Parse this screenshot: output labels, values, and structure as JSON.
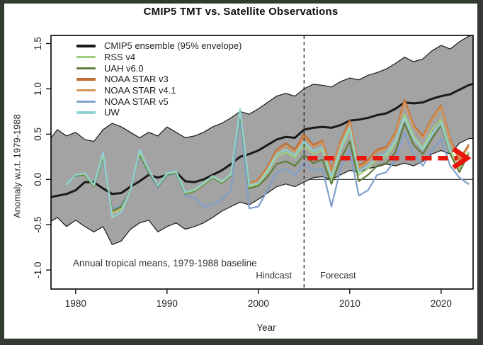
{
  "title": "CMIP5 TMT vs. Satellite Observations",
  "legend": {
    "items": [
      {
        "label": "CMIP5 ensemble (95% envelope)",
        "color": "#1a1a1a"
      },
      {
        "label": "RSS v4",
        "color": "#a3cd7e"
      },
      {
        "label": "UAH v6.0",
        "color": "#5f7d3a"
      },
      {
        "label": "NOAA STAR v3",
        "color": "#bf6d33"
      },
      {
        "label": "NOAA STAR v4.1",
        "color": "#d79455"
      },
      {
        "label": "NOAA STAR v5",
        "color": "#809fcd"
      },
      {
        "label": "UW",
        "color": "#8fd2d4"
      }
    ]
  },
  "annotations": {
    "baseline_note": "Annual tropical means, 1979-1988 baseline",
    "hindcast_label": "Hindcast",
    "forecast_label": "Forecast"
  },
  "chart_data": {
    "type": "line",
    "title": "CMIP5 TMT vs. Satellite Observations",
    "xlabel": "Year",
    "ylabel": "Anomaly w.r.t. 1979-1988",
    "x_ticks": [
      "1980",
      "1990",
      "2000",
      "2010",
      "2020"
    ],
    "y_ticks": [
      "-1.0",
      "-0.5",
      "0.0",
      "0.5",
      "1.0",
      "1.5"
    ],
    "x_range": [
      1977.3,
      2023.5
    ],
    "y_range": [
      -1.21,
      1.59
    ],
    "grid": false,
    "zero_line": true,
    "divider": {
      "year": 2005,
      "style": "dashed",
      "color": "#222222"
    },
    "trend_arrow": {
      "y": 0.235,
      "x_start": 2005.4,
      "x_end": 2022.6,
      "color": "#e8160c"
    },
    "envelope": {
      "name": "CMIP5 95% envelope",
      "start_year": 1977,
      "fill": "#a3a3a3",
      "edge": "#1a1a1a",
      "upper": [
        0.42,
        0.55,
        0.48,
        0.52,
        0.44,
        0.42,
        0.55,
        0.62,
        0.58,
        0.52,
        0.46,
        0.52,
        0.48,
        0.58,
        0.52,
        0.46,
        0.48,
        0.52,
        0.58,
        0.62,
        0.68,
        0.75,
        0.72,
        0.78,
        0.85,
        0.92,
        0.95,
        0.92,
        1.0,
        1.05,
        1.04,
        1.02,
        1.08,
        1.12,
        1.1,
        1.15,
        1.18,
        1.22,
        1.28,
        1.35,
        1.3,
        1.33,
        1.42,
        1.48,
        1.44,
        1.52,
        1.58,
        1.62
      ],
      "lower": [
        -0.48,
        -0.42,
        -0.52,
        -0.45,
        -0.52,
        -0.58,
        -0.52,
        -0.72,
        -0.68,
        -0.55,
        -0.48,
        -0.45,
        -0.58,
        -0.52,
        -0.48,
        -0.55,
        -0.52,
        -0.48,
        -0.42,
        -0.35,
        -0.3,
        -0.25,
        -0.28,
        -0.22,
        -0.15,
        -0.08,
        -0.05,
        -0.08,
        -0.03,
        0.02,
        0.03,
        0.0,
        0.05,
        0.1,
        0.08,
        0.12,
        0.14,
        0.17,
        0.15,
        0.18,
        0.15,
        0.2,
        0.28,
        0.32,
        0.28,
        0.4,
        0.45,
        0.46
      ]
    },
    "series": [
      {
        "name": "CMIP5 ensemble",
        "color": "#1a1a1a",
        "width": 3,
        "start_year": 1977,
        "values": [
          -0.2,
          -0.18,
          -0.16,
          -0.12,
          -0.03,
          -0.03,
          -0.1,
          -0.16,
          -0.15,
          -0.08,
          -0.02,
          0.05,
          0.02,
          0.05,
          0.08,
          -0.02,
          -0.03,
          0.0,
          0.05,
          0.1,
          0.17,
          0.25,
          0.28,
          0.32,
          0.38,
          0.44,
          0.47,
          0.46,
          0.55,
          0.57,
          0.58,
          0.57,
          0.6,
          0.65,
          0.66,
          0.68,
          0.71,
          0.73,
          0.78,
          0.85,
          0.84,
          0.85,
          0.89,
          0.92,
          0.94,
          0.99,
          1.04,
          1.07
        ]
      },
      {
        "name": "NOAA STAR v3",
        "color": "#bf6d33",
        "width": 2.2,
        "start_year": 1979,
        "values": [
          -0.05,
          0.05,
          0.06,
          -0.07,
          0.27,
          -0.37,
          -0.32,
          -0.11,
          0.3,
          0.1,
          -0.07,
          0.06,
          0.08,
          -0.14,
          -0.11,
          -0.04,
          0.04,
          -0.02,
          0.06,
          0.76,
          -0.05,
          0.0,
          0.14,
          0.33,
          0.4,
          0.33,
          0.5,
          0.38,
          0.43,
          0.1,
          0.43,
          0.65,
          0.15,
          0.22,
          0.33,
          0.36,
          0.52,
          0.88,
          0.6,
          0.48,
          0.68,
          0.82,
          0.45,
          0.22,
          0.38
        ]
      },
      {
        "name": "NOAA STAR v4.1",
        "color": "#d79455",
        "width": 2.2,
        "start_year": 1979,
        "values": [
          -0.05,
          0.05,
          0.06,
          -0.07,
          0.26,
          -0.37,
          -0.32,
          -0.11,
          0.29,
          0.1,
          -0.07,
          0.06,
          0.08,
          -0.14,
          -0.11,
          -0.04,
          0.04,
          -0.02,
          0.06,
          0.74,
          -0.06,
          -0.01,
          0.12,
          0.3,
          0.37,
          0.3,
          0.47,
          0.36,
          0.41,
          0.08,
          0.41,
          0.62,
          0.13,
          0.2,
          0.31,
          0.34,
          0.5,
          0.85,
          0.58,
          0.46,
          0.66,
          0.8,
          0.43,
          0.2,
          0.36
        ]
      },
      {
        "name": "NOAA STAR v5",
        "color": "#809fcd",
        "width": 2.2,
        "start_year": 1979,
        "values": [
          -0.04,
          0.05,
          0.05,
          -0.08,
          0.22,
          -0.33,
          -0.28,
          -0.12,
          0.26,
          0.07,
          -0.09,
          0.04,
          0.06,
          -0.18,
          -0.2,
          -0.3,
          -0.28,
          -0.22,
          -0.12,
          0.68,
          -0.32,
          -0.3,
          -0.12,
          0.08,
          0.12,
          0.05,
          0.18,
          0.1,
          0.12,
          -0.3,
          0.12,
          0.32,
          -0.18,
          -0.12,
          0.05,
          0.08,
          0.22,
          0.52,
          0.28,
          0.15,
          0.32,
          0.45,
          0.15,
          0.02,
          -0.05
        ]
      },
      {
        "name": "UAH v6.0",
        "color": "#5f7d3a",
        "width": 2.2,
        "start_year": 1979,
        "values": [
          -0.05,
          0.04,
          0.05,
          -0.08,
          0.25,
          -0.35,
          -0.3,
          -0.12,
          0.28,
          0.08,
          -0.08,
          0.05,
          0.07,
          -0.16,
          -0.13,
          -0.06,
          0.02,
          -0.04,
          0.04,
          0.72,
          -0.1,
          -0.07,
          0.03,
          0.17,
          0.2,
          0.15,
          0.27,
          0.18,
          0.22,
          -0.05,
          0.22,
          0.42,
          -0.02,
          0.05,
          0.15,
          0.18,
          0.3,
          0.62,
          0.38,
          0.28,
          0.45,
          0.6,
          0.28,
          0.08,
          0.28
        ]
      },
      {
        "name": "RSS v4",
        "color": "#a3cd7e",
        "width": 2.2,
        "start_year": 1979,
        "values": [
          -0.05,
          0.05,
          0.06,
          -0.07,
          0.27,
          -0.38,
          -0.33,
          -0.12,
          0.3,
          0.1,
          -0.07,
          0.06,
          0.08,
          -0.15,
          -0.12,
          -0.05,
          0.03,
          -0.03,
          0.05,
          0.75,
          -0.08,
          -0.05,
          0.08,
          0.25,
          0.3,
          0.24,
          0.38,
          0.28,
          0.32,
          0.0,
          0.32,
          0.55,
          0.05,
          0.12,
          0.22,
          0.25,
          0.4,
          0.72,
          0.48,
          0.35,
          0.55,
          0.66,
          0.33,
          0.12,
          0.3
        ]
      },
      {
        "name": "UW",
        "color": "#8fd2d4",
        "width": 2.2,
        "start_year": 1979,
        "values": [
          -0.06,
          0.05,
          0.07,
          -0.06,
          0.3,
          -0.42,
          -0.36,
          -0.12,
          0.33,
          0.11,
          -0.07,
          0.07,
          0.09,
          -0.14,
          -0.11,
          -0.04,
          0.04,
          -0.02,
          0.06,
          0.78,
          -0.06,
          -0.04,
          0.1,
          0.28,
          0.33,
          0.27,
          0.42,
          0.31,
          0.35,
          0.03,
          0.35,
          0.58,
          0.08,
          0.15,
          0.25,
          0.28,
          0.43,
          0.68,
          0.45,
          0.33,
          0.5,
          0.62,
          0.3
        ]
      }
    ]
  }
}
